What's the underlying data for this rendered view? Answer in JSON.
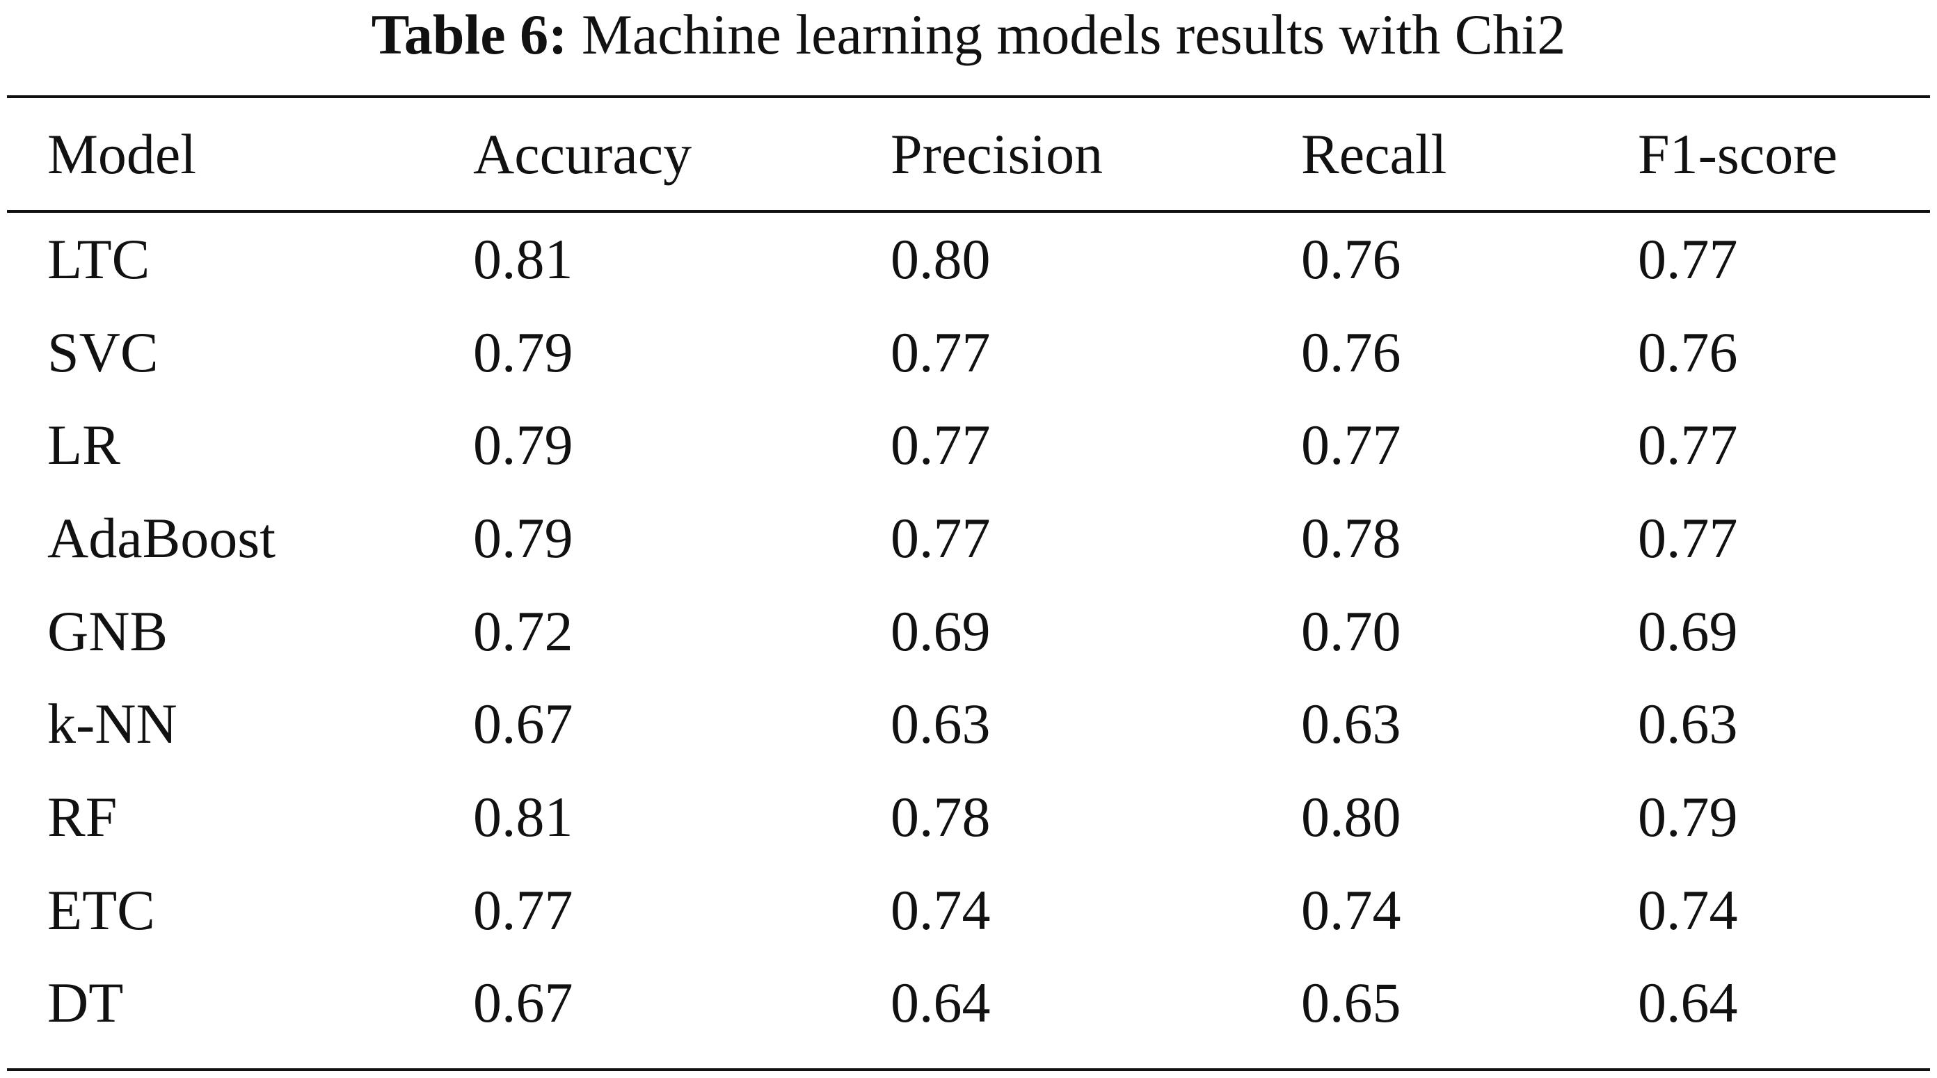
{
  "caption": {
    "label": "Table 6:",
    "text": "Machine learning models results with Chi2"
  },
  "table": {
    "headers": [
      "Model",
      "Accuracy",
      "Precision",
      "Recall",
      "F1-score"
    ],
    "rows": [
      [
        "LTC",
        "0.81",
        "0.80",
        "0.76",
        "0.77"
      ],
      [
        "SVC",
        "0.79",
        "0.77",
        "0.76",
        "0.76"
      ],
      [
        "LR",
        "0.79",
        "0.77",
        "0.77",
        "0.77"
      ],
      [
        "AdaBoost",
        "0.79",
        "0.77",
        "0.78",
        "0.77"
      ],
      [
        "GNB",
        "0.72",
        "0.69",
        "0.70",
        "0.69"
      ],
      [
        "k-NN",
        "0.67",
        "0.63",
        "0.63",
        "0.63"
      ],
      [
        "RF",
        "0.81",
        "0.78",
        "0.80",
        "0.79"
      ],
      [
        "ETC",
        "0.77",
        "0.74",
        "0.74",
        "0.74"
      ],
      [
        "DT",
        "0.67",
        "0.64",
        "0.65",
        "0.64"
      ]
    ]
  }
}
